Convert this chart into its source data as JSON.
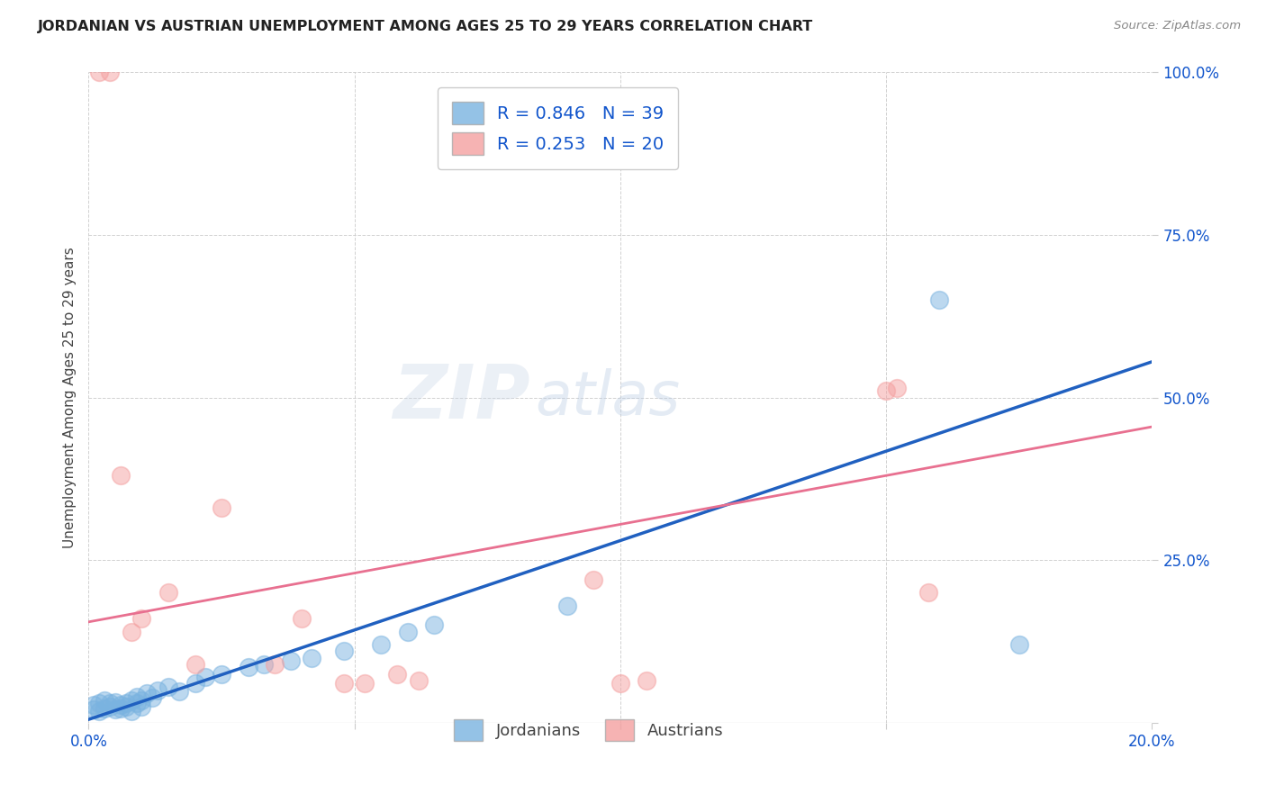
{
  "title": "JORDANIAN VS AUSTRIAN UNEMPLOYMENT AMONG AGES 25 TO 29 YEARS CORRELATION CHART",
  "source": "Source: ZipAtlas.com",
  "ylabel": "Unemployment Among Ages 25 to 29 years",
  "xlim": [
    0.0,
    0.2
  ],
  "ylim": [
    0.0,
    1.0
  ],
  "xticks": [
    0.0,
    0.05,
    0.1,
    0.15,
    0.2
  ],
  "yticks": [
    0.0,
    0.25,
    0.5,
    0.75,
    1.0
  ],
  "ytick_labels": [
    "",
    "25.0%",
    "50.0%",
    "75.0%",
    "100.0%"
  ],
  "xtick_labels": [
    "0.0%",
    "",
    "",
    "",
    "20.0%"
  ],
  "jordanian_color": "#7ab3e0",
  "austrian_color": "#f4a0a0",
  "jordan_R": 0.846,
  "jordan_N": 39,
  "austria_R": 0.253,
  "austria_N": 20,
  "jordan_line_color": "#2060c0",
  "austria_line_color": "#e87090",
  "watermark_zip": "ZIP",
  "watermark_atlas": "atlas",
  "legend_color": "#1155cc",
  "jordanians_x": [
    0.001,
    0.001,
    0.002,
    0.002,
    0.003,
    0.003,
    0.004,
    0.004,
    0.005,
    0.005,
    0.006,
    0.006,
    0.007,
    0.007,
    0.008,
    0.008,
    0.009,
    0.009,
    0.01,
    0.01,
    0.011,
    0.012,
    0.013,
    0.015,
    0.017,
    0.02,
    0.022,
    0.025,
    0.03,
    0.033,
    0.038,
    0.042,
    0.048,
    0.055,
    0.06,
    0.065,
    0.09,
    0.16,
    0.175
  ],
  "jordanians_y": [
    0.02,
    0.028,
    0.018,
    0.03,
    0.022,
    0.035,
    0.025,
    0.03,
    0.02,
    0.032,
    0.028,
    0.022,
    0.03,
    0.025,
    0.035,
    0.018,
    0.03,
    0.04,
    0.025,
    0.035,
    0.045,
    0.038,
    0.05,
    0.055,
    0.048,
    0.06,
    0.07,
    0.075,
    0.085,
    0.09,
    0.095,
    0.1,
    0.11,
    0.12,
    0.14,
    0.15,
    0.18,
    0.65,
    0.12
  ],
  "austrians_x": [
    0.002,
    0.004,
    0.006,
    0.008,
    0.01,
    0.015,
    0.02,
    0.025,
    0.035,
    0.04,
    0.048,
    0.052,
    0.058,
    0.062,
    0.095,
    0.1,
    0.105,
    0.15,
    0.152,
    0.158
  ],
  "austrians_y": [
    1.0,
    1.0,
    0.38,
    0.14,
    0.16,
    0.2,
    0.09,
    0.33,
    0.09,
    0.16,
    0.06,
    0.06,
    0.075,
    0.065,
    0.22,
    0.06,
    0.065,
    0.51,
    0.515,
    0.2
  ],
  "jordan_line_x0": 0.0,
  "jordan_line_y0": 0.005,
  "jordan_line_x1": 0.2,
  "jordan_line_y1": 0.555,
  "austria_line_x0": 0.0,
  "austria_line_y0": 0.155,
  "austria_line_x1": 0.2,
  "austria_line_y1": 0.455
}
